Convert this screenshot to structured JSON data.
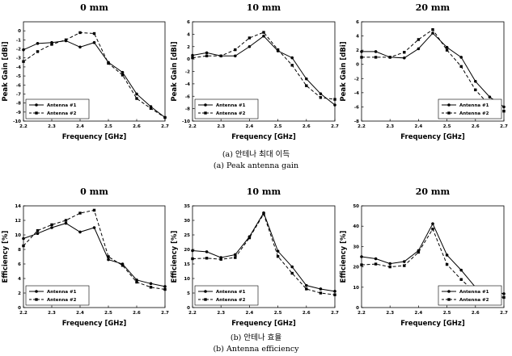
{
  "captions": {
    "gain_korean": "(a) 안테나 최대 이득",
    "gain_english": "(a) Peak antenna gain",
    "eff_korean": "(b) 안테나 효율",
    "eff_english": "(b) Antenna efficiency"
  },
  "chart_data": [
    {
      "type": "line",
      "title": "0 mm",
      "xlabel": "Frequency [GHz]",
      "ylabel": "Peak Gain [dBi]",
      "xlim": [
        2.2,
        2.7
      ],
      "ylim": [
        -10,
        1
      ],
      "xticks": [
        "2.2",
        "2.3",
        "2.4",
        "2.5",
        "2.6",
        "2.7"
      ],
      "yticks": [
        "-10",
        "-9",
        "-8",
        "-7",
        "-6",
        "-5",
        "-4",
        "-3",
        "-2",
        "-1",
        "0"
      ],
      "grid": false,
      "legend_position": "bottom-left",
      "x": [
        2.2,
        2.25,
        2.3,
        2.35,
        2.4,
        2.45,
        2.5,
        2.55,
        2.6,
        2.65,
        2.7
      ],
      "series": [
        {
          "name": "Antenna #1",
          "style": "solid",
          "values": [
            -2.1,
            -1.4,
            -1.3,
            -1.1,
            -1.8,
            -1.3,
            -3.5,
            -4.6,
            -7.0,
            -8.4,
            -9.6
          ]
        },
        {
          "name": "Antenna #2",
          "style": "dashed",
          "values": [
            -3.4,
            -2.3,
            -1.5,
            -1.0,
            -0.2,
            -0.3,
            -3.6,
            -4.9,
            -7.5,
            -8.6,
            -9.6
          ]
        }
      ]
    },
    {
      "type": "line",
      "title": "10 mm",
      "xlabel": "Frequency [GHz]",
      "ylabel": "Peak Gain [dBi]",
      "xlim": [
        2.2,
        2.7
      ],
      "ylim": [
        -10,
        6
      ],
      "xticks": [
        "2.2",
        "2.3",
        "2.4",
        "2.5",
        "2.6",
        "2.7"
      ],
      "yticks": [
        "-10",
        "-8",
        "-6",
        "-4",
        "-2",
        "0",
        "2",
        "4",
        "6"
      ],
      "grid": false,
      "legend_position": "bottom-left",
      "x": [
        2.2,
        2.25,
        2.3,
        2.35,
        2.4,
        2.45,
        2.5,
        2.55,
        2.6,
        2.65,
        2.7
      ],
      "series": [
        {
          "name": "Antenna #1",
          "style": "solid",
          "values": [
            0.6,
            1.0,
            0.5,
            0.5,
            2.0,
            3.7,
            1.3,
            0.2,
            -3.2,
            -5.6,
            -7.4
          ]
        },
        {
          "name": "Antenna #2",
          "style": "dashed",
          "values": [
            0.2,
            0.5,
            0.5,
            1.5,
            3.4,
            4.3,
            1.5,
            -1.0,
            -4.3,
            -6.2,
            -6.5
          ]
        }
      ]
    },
    {
      "type": "line",
      "title": "20 mm",
      "xlabel": "Frequency [GHz]",
      "ylabel": "Peak Gain [dBi]",
      "xlim": [
        2.2,
        2.7
      ],
      "ylim": [
        -8,
        6
      ],
      "xticks": [
        "2.2",
        "2.3",
        "2.4",
        "2.5",
        "2.6",
        "2.7"
      ],
      "yticks": [
        "-8",
        "-6",
        "-4",
        "-2",
        "0",
        "2",
        "4",
        "6"
      ],
      "grid": false,
      "legend_position": "bottom-right",
      "x": [
        2.2,
        2.25,
        2.3,
        2.35,
        2.4,
        2.45,
        2.5,
        2.55,
        2.6,
        2.65,
        2.7
      ],
      "series": [
        {
          "name": "Antenna #1",
          "style": "solid",
          "values": [
            1.8,
            1.8,
            1.0,
            0.9,
            2.2,
            4.4,
            2.4,
            1.0,
            -2.4,
            -4.6,
            -6.0
          ]
        },
        {
          "name": "Antenna #2",
          "style": "dashed",
          "values": [
            1.0,
            1.0,
            1.0,
            1.7,
            3.5,
            4.9,
            2.0,
            -0.3,
            -3.6,
            -5.8,
            -6.6
          ]
        }
      ]
    },
    {
      "type": "line",
      "title": "0 mm",
      "xlabel": "Frequency [GHz]",
      "ylabel": "Efficiency [%]",
      "xlim": [
        2.2,
        2.7
      ],
      "ylim": [
        0,
        14
      ],
      "xticks": [
        "2.2",
        "2.3",
        "2.4",
        "2.5",
        "2.6",
        "2.7"
      ],
      "yticks": [
        "0",
        "2",
        "4",
        "6",
        "8",
        "10",
        "12",
        "14"
      ],
      "grid": false,
      "legend_position": "bottom-left",
      "x": [
        2.2,
        2.25,
        2.3,
        2.35,
        2.4,
        2.45,
        2.5,
        2.55,
        2.6,
        2.65,
        2.7
      ],
      "series": [
        {
          "name": "Antenna #1",
          "style": "solid",
          "values": [
            9.5,
            10.2,
            11.0,
            11.6,
            10.4,
            11.0,
            6.6,
            6.0,
            3.8,
            3.3,
            2.9
          ]
        },
        {
          "name": "Antenna #2",
          "style": "dashed",
          "values": [
            8.5,
            10.6,
            11.4,
            12.0,
            13.0,
            13.4,
            7.0,
            5.8,
            3.5,
            2.8,
            2.5
          ]
        }
      ]
    },
    {
      "type": "line",
      "title": "10 mm",
      "xlabel": "Frequency [GHz]",
      "ylabel": "Efficiency [%]",
      "xlim": [
        2.2,
        2.7
      ],
      "ylim": [
        0,
        35
      ],
      "xticks": [
        "2.2",
        "2.3",
        "2.4",
        "2.5",
        "2.6",
        "2.7"
      ],
      "yticks": [
        "0",
        "5",
        "10",
        "15",
        "20",
        "25",
        "30",
        "35"
      ],
      "grid": false,
      "legend_position": "bottom-left",
      "x": [
        2.2,
        2.25,
        2.3,
        2.35,
        2.4,
        2.45,
        2.5,
        2.55,
        2.6,
        2.65,
        2.7
      ],
      "series": [
        {
          "name": "Antenna #1",
          "style": "solid",
          "values": [
            19.6,
            19.2,
            17.2,
            18.2,
            24.4,
            32.6,
            19.4,
            14.0,
            7.6,
            6.4,
            5.6
          ]
        },
        {
          "name": "Antenna #2",
          "style": "dashed",
          "values": [
            16.8,
            17.0,
            16.6,
            17.2,
            24.0,
            32.2,
            17.6,
            11.8,
            6.4,
            5.0,
            4.4
          ]
        }
      ]
    },
    {
      "type": "line",
      "title": "20 mm",
      "xlabel": "Frequency [GHz]",
      "ylabel": "Efficiency [%]",
      "xlim": [
        2.2,
        2.7
      ],
      "ylim": [
        0,
        50
      ],
      "xticks": [
        "2.2",
        "2.3",
        "2.4",
        "2.5",
        "2.6",
        "2.7"
      ],
      "yticks": [
        "0",
        "10",
        "20",
        "30",
        "40",
        "50"
      ],
      "grid": false,
      "legend_position": "bottom-right",
      "x": [
        2.2,
        2.25,
        2.3,
        2.35,
        2.4,
        2.45,
        2.5,
        2.55,
        2.6,
        2.65,
        2.7
      ],
      "series": [
        {
          "name": "Antenna #1",
          "style": "solid",
          "values": [
            25.0,
            24.0,
            21.6,
            22.6,
            28.0,
            41.2,
            25.8,
            18.4,
            10.0,
            8.2,
            6.8
          ]
        },
        {
          "name": "Antenna #2",
          "style": "dashed",
          "values": [
            21.0,
            21.4,
            20.0,
            20.6,
            27.2,
            38.6,
            21.2,
            13.8,
            7.2,
            5.8,
            5.0
          ]
        }
      ]
    }
  ]
}
